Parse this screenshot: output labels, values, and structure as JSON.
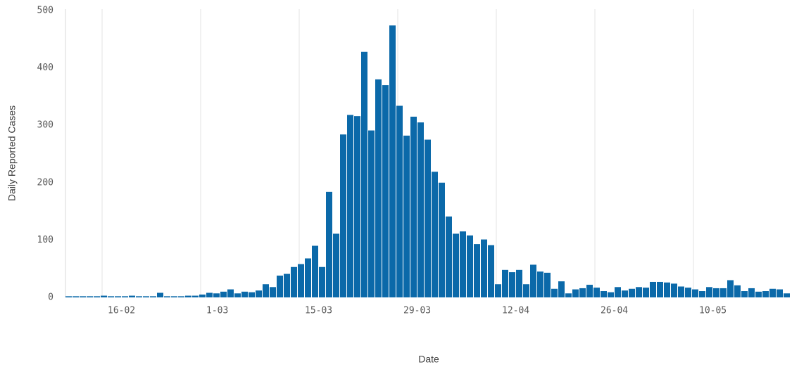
{
  "chart_data": {
    "type": "bar",
    "x_label": "Date",
    "y_label": "Daily Reported Cases",
    "color": "#0b69a9",
    "categories": [
      null,
      null,
      null,
      null,
      null,
      "16-02",
      null,
      null,
      null,
      null,
      null,
      null,
      null,
      null,
      null,
      null,
      null,
      null,
      null,
      "1-03",
      null,
      null,
      null,
      null,
      null,
      null,
      null,
      null,
      null,
      null,
      null,
      null,
      null,
      "15-03",
      null,
      null,
      null,
      null,
      null,
      null,
      null,
      null,
      null,
      null,
      null,
      null,
      null,
      "29-03",
      null,
      null,
      null,
      null,
      null,
      null,
      null,
      null,
      null,
      null,
      null,
      null,
      null,
      "12-04",
      null,
      null,
      null,
      null,
      null,
      null,
      null,
      null,
      null,
      null,
      null,
      null,
      null,
      "26-04",
      null,
      null,
      null,
      null,
      null,
      null,
      null,
      null,
      null,
      null,
      null,
      null,
      null,
      "10-05",
      null,
      null,
      null,
      null,
      null,
      null,
      null,
      null,
      null,
      null,
      null,
      null,
      null
    ],
    "values": [
      2,
      2,
      2,
      2,
      2,
      3,
      2,
      2,
      2,
      3,
      2,
      2,
      2,
      8,
      2,
      2,
      2,
      3,
      3,
      5,
      8,
      7,
      10,
      14,
      7,
      10,
      9,
      12,
      23,
      18,
      38,
      41,
      53,
      58,
      68,
      90,
      53,
      184,
      111,
      284,
      318,
      316,
      428,
      291,
      380,
      370,
      474,
      334,
      282,
      315,
      305,
      275,
      219,
      200,
      141,
      111,
      115,
      108,
      93,
      101,
      91,
      23,
      48,
      44,
      48,
      23,
      57,
      45,
      43,
      15,
      28,
      7,
      14,
      16,
      22,
      17,
      11,
      9,
      18,
      12,
      15,
      18,
      17,
      27,
      27,
      26,
      24,
      19,
      17,
      14,
      11,
      18,
      16,
      16,
      30,
      21,
      11,
      16,
      10,
      11,
      15,
      14,
      7
    ],
    "ylim": [
      0,
      500
    ],
    "yticks": [
      0,
      100,
      200,
      300,
      400,
      500
    ],
    "grid": true
  }
}
